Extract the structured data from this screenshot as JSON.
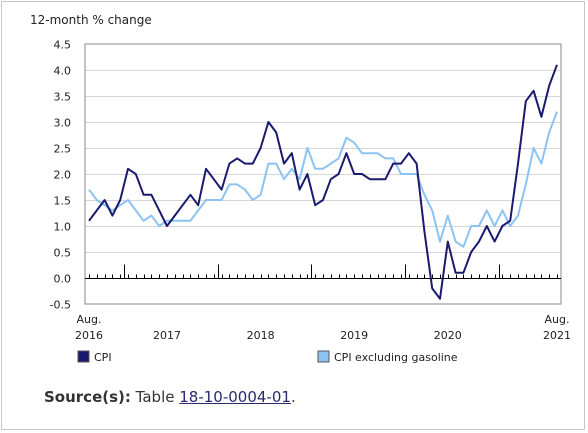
{
  "chart_data": {
    "type": "line",
    "ylabel": "12-month % change",
    "ylim": [
      -0.5,
      4.5
    ],
    "yticks": [
      4.5,
      4.0,
      3.5,
      3.0,
      2.5,
      2.0,
      1.5,
      1.0,
      0.5,
      0.0,
      -0.5
    ],
    "ytick_labels": [
      "4.5",
      "4.0",
      "3.5",
      "3.0",
      "2.5",
      "2.0",
      "1.5",
      "1.0",
      "0.5",
      "0.0",
      "-0.5"
    ],
    "x_start": "2016-08",
    "x_end": "2021-08",
    "x_labels": [
      {
        "month": "2016-08",
        "lines": [
          "Aug.",
          "2016"
        ]
      },
      {
        "month": "2017-06",
        "lines": [
          "",
          "2017"
        ]
      },
      {
        "month": "2018-06",
        "lines": [
          "",
          "2018"
        ]
      },
      {
        "month": "2019-06",
        "lines": [
          "",
          "2019"
        ]
      },
      {
        "month": "2020-06",
        "lines": [
          "",
          "2020"
        ]
      },
      {
        "month": "2021-08",
        "lines": [
          "Aug.",
          "2021"
        ]
      }
    ],
    "year_marks": [
      "2017-01",
      "2018-01",
      "2019-01",
      "2020-01",
      "2021-01"
    ],
    "grid": true,
    "legend_position": "bottom",
    "series": [
      {
        "name": "CPI",
        "color": "#1a1a6e",
        "values": [
          1.1,
          1.3,
          1.5,
          1.2,
          1.5,
          2.1,
          2.0,
          1.6,
          1.6,
          1.3,
          1.0,
          1.2,
          1.4,
          1.6,
          1.4,
          2.1,
          1.9,
          1.7,
          2.2,
          2.3,
          2.2,
          2.2,
          2.5,
          3.0,
          2.8,
          2.2,
          2.4,
          1.7,
          2.0,
          1.4,
          1.5,
          1.9,
          2.0,
          2.4,
          2.0,
          2.0,
          1.9,
          1.9,
          1.9,
          2.2,
          2.2,
          2.4,
          2.2,
          0.9,
          -0.2,
          -0.4,
          0.7,
          0.1,
          0.1,
          0.5,
          0.7,
          1.0,
          0.7,
          1.0,
          1.1,
          2.2,
          3.4,
          3.6,
          3.1,
          3.7,
          4.1
        ]
      },
      {
        "name": "CPI excluding gasoline",
        "color": "#8dc3f2",
        "values": [
          1.7,
          1.5,
          1.4,
          1.3,
          1.4,
          1.5,
          1.3,
          1.1,
          1.2,
          1.0,
          1.1,
          1.1,
          1.1,
          1.1,
          1.3,
          1.5,
          1.5,
          1.5,
          1.8,
          1.8,
          1.7,
          1.5,
          1.6,
          2.2,
          2.2,
          1.9,
          2.1,
          1.9,
          2.5,
          2.1,
          2.1,
          2.2,
          2.3,
          2.7,
          2.6,
          2.4,
          2.4,
          2.4,
          2.3,
          2.3,
          2.0,
          2.0,
          2.0,
          1.6,
          1.3,
          0.7,
          1.2,
          0.7,
          0.6,
          1.0,
          1.0,
          1.3,
          1.0,
          1.3,
          1.0,
          1.2,
          1.8,
          2.5,
          2.2,
          2.8,
          3.2
        ]
      }
    ]
  },
  "source": {
    "label": "Source(s):",
    "prefix": "Table",
    "link_text": "18-10-0004-01",
    "suffix": "."
  }
}
